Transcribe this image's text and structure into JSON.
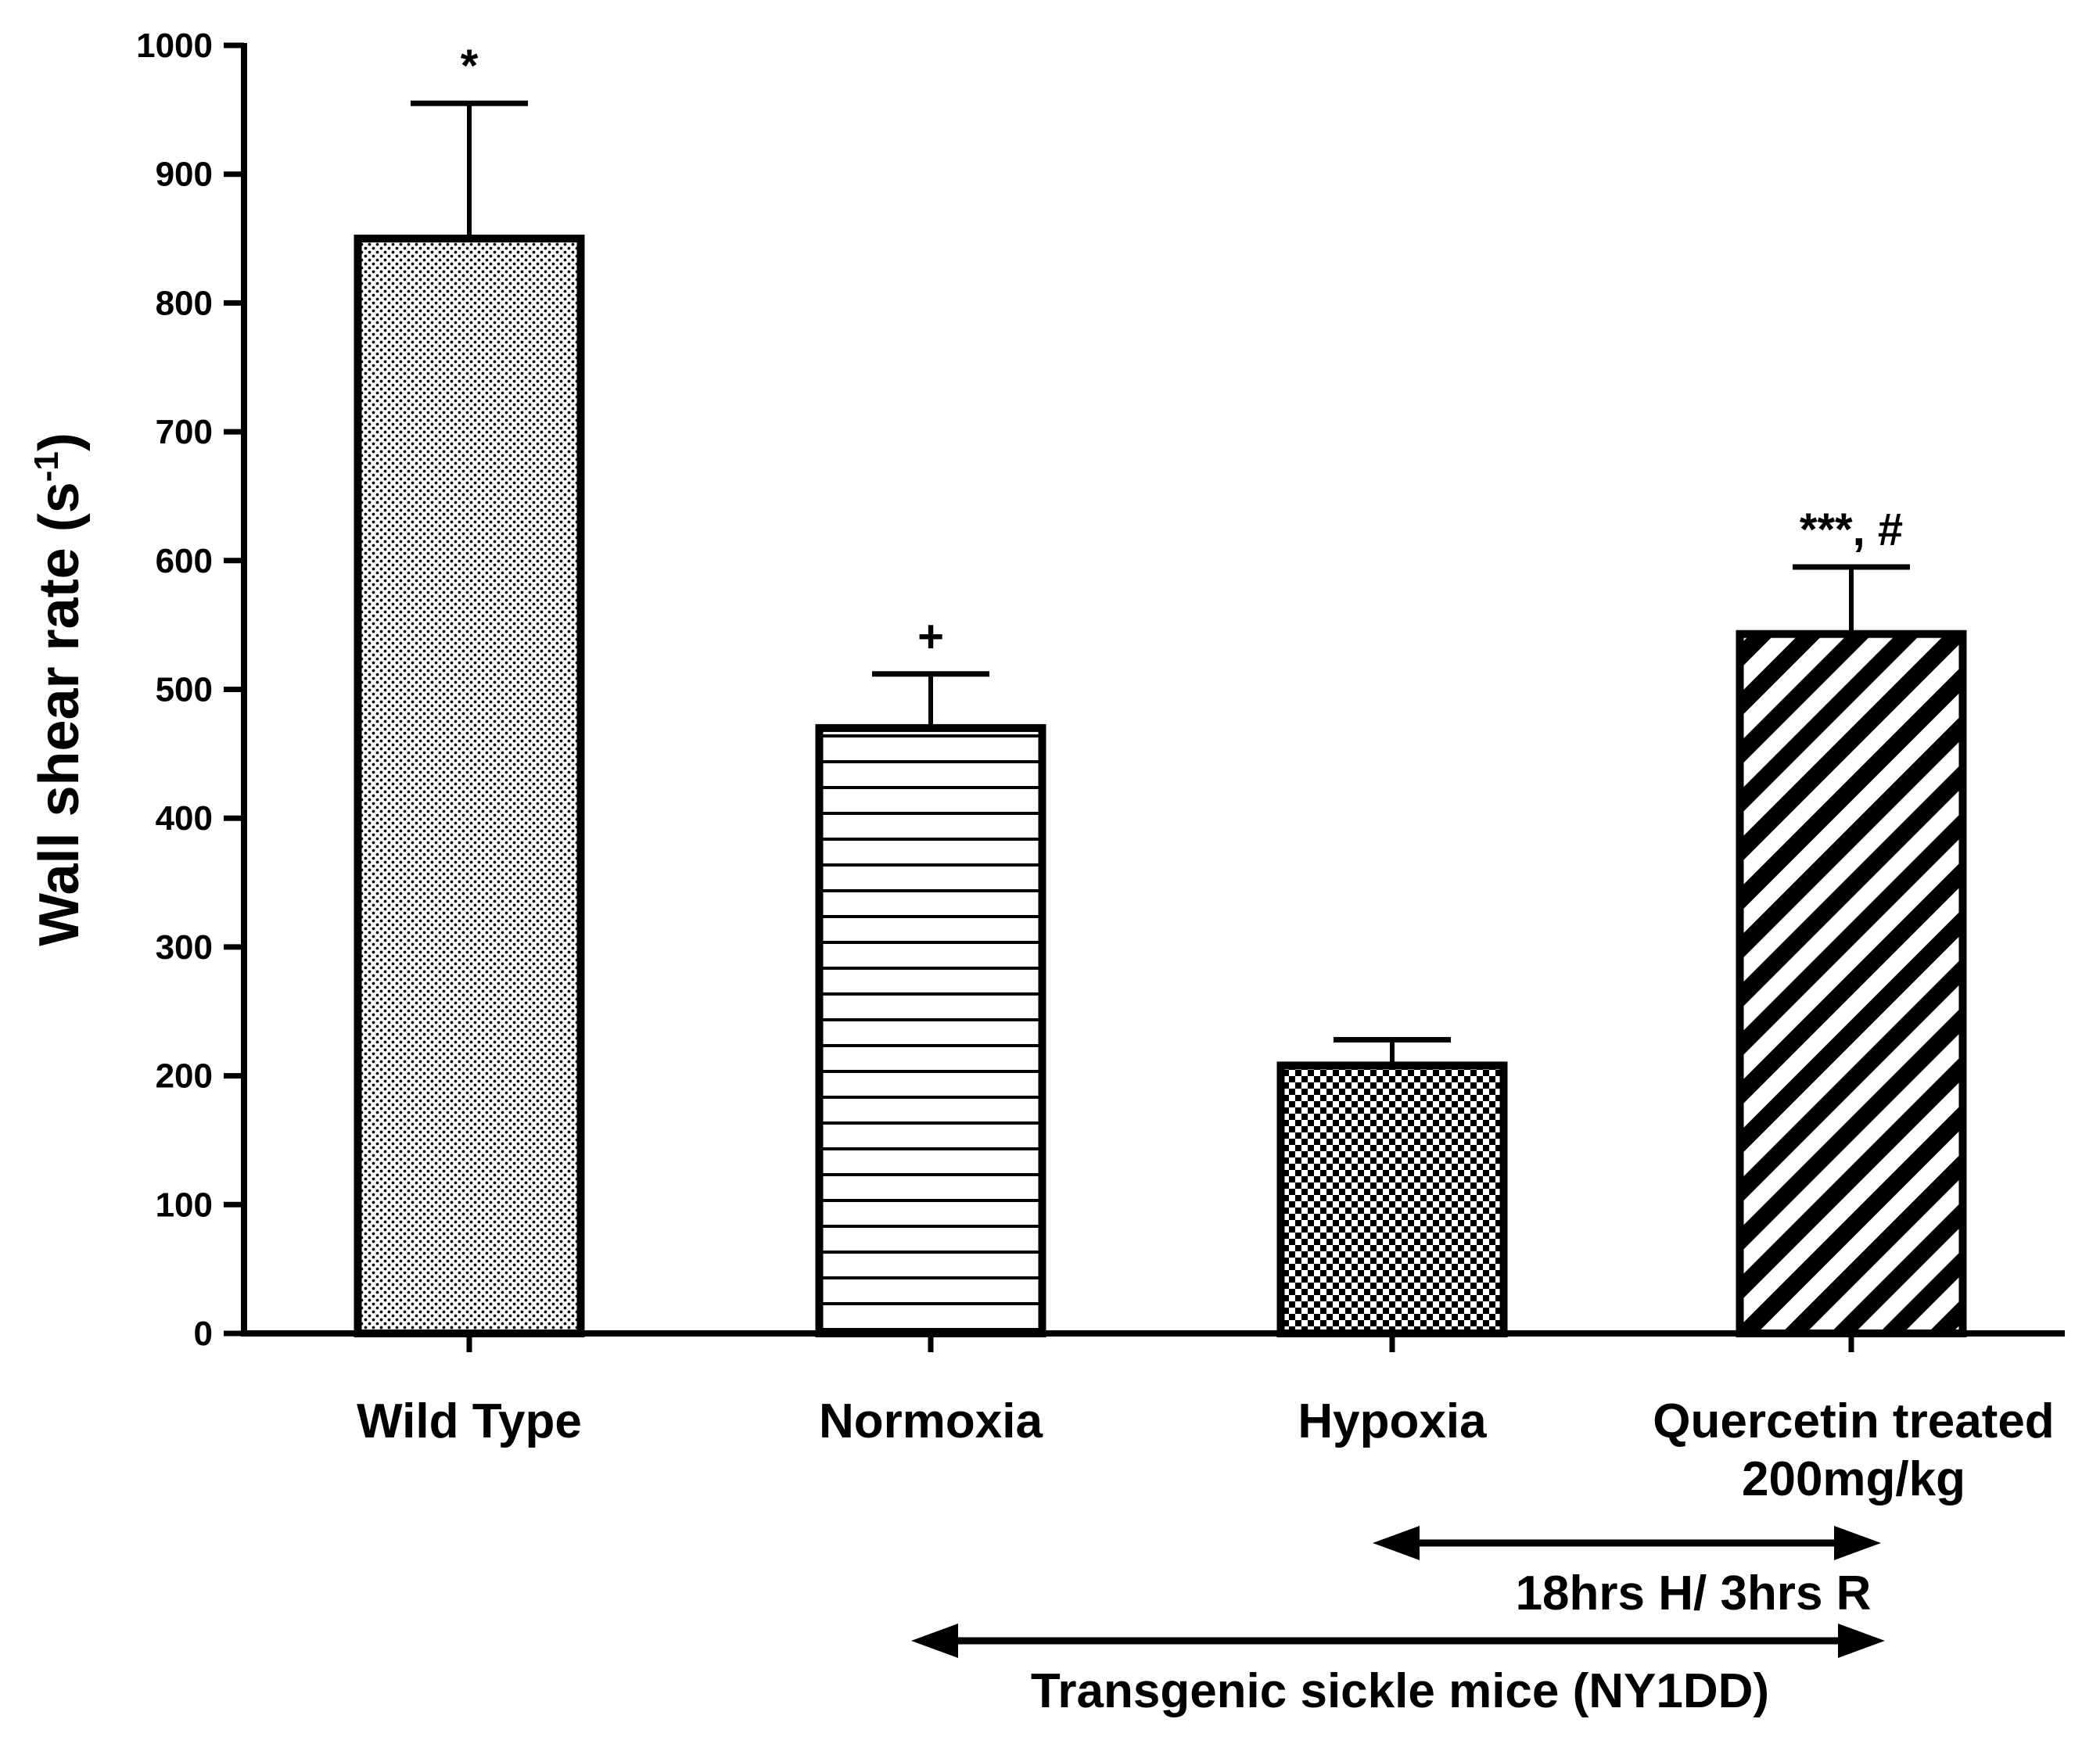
{
  "chart_data": {
    "type": "bar",
    "title": "",
    "xlabel": "",
    "ylabel": "Wall shear rate (s",
    "ylabel_unit_exponent": "-1",
    "ylabel_close": ")",
    "ylim": [
      0,
      1000
    ],
    "yticks": [
      "0",
      "100",
      "200",
      "300",
      "400",
      "500",
      "600",
      "700",
      "800",
      "900",
      "1000"
    ],
    "categories": [
      {
        "label": "Wild Type",
        "label2": ""
      },
      {
        "label": "Normoxia",
        "label2": ""
      },
      {
        "label": "Hypoxia",
        "label2": ""
      },
      {
        "label": "Quercetin treated",
        "label2": "200mg/kg"
      }
    ],
    "values": [
      850,
      470,
      208,
      543
    ],
    "errors": [
      105,
      42,
      20,
      52
    ],
    "significance": [
      "*",
      "+",
      "",
      "***, #"
    ],
    "patterns": [
      "dots",
      "horizontal-lines",
      "checkerboard",
      "diagonal-stripes"
    ],
    "grid": false,
    "legend": "none",
    "annotations": [
      {
        "text": "18hrs H/ 3hrs R",
        "from_category": 2,
        "to_category": 3
      },
      {
        "text": "Transgenic sickle mice (NY1DD)",
        "from_category": 1,
        "to_category": 3
      }
    ],
    "colors": {
      "stroke": "#000000",
      "background": "#ffffff"
    }
  }
}
